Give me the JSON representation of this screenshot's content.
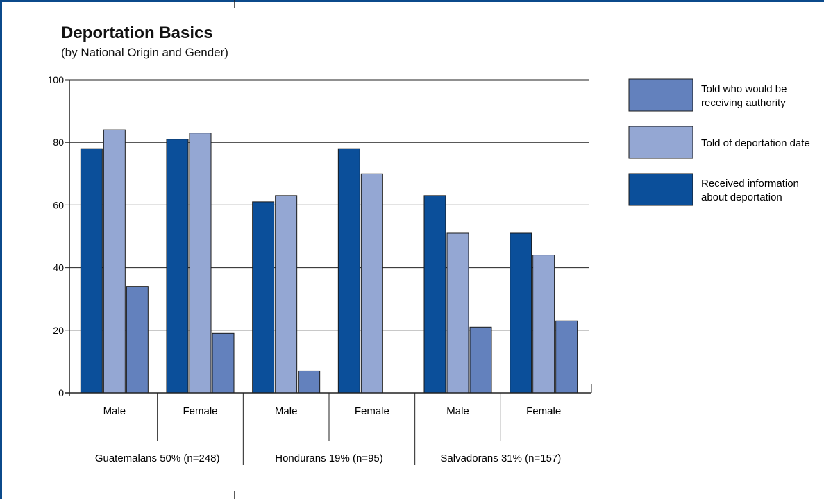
{
  "chart_data": {
    "type": "bar",
    "title": "Deportation Basics",
    "subtitle": "(by National Origin and Gender)",
    "ylim": [
      0,
      100
    ],
    "yticks": [
      0,
      20,
      40,
      60,
      80,
      100
    ],
    "grid": true,
    "legend_position": "right",
    "groups": [
      {
        "label": "Guatemalans 50% (n=248)",
        "categories": [
          "Male",
          "Female"
        ]
      },
      {
        "label": "Hondurans 19% (n=95)",
        "categories": [
          "Male",
          "Female"
        ]
      },
      {
        "label": "Salvadorans 31% (n=157)",
        "categories": [
          "Male",
          "Female"
        ]
      }
    ],
    "categories": [
      "Male",
      "Female",
      "Male",
      "Female",
      "Male",
      "Female"
    ],
    "series": [
      {
        "name": "Received information about deportation",
        "legend_lines": [
          "Received information",
          "about deportation"
        ],
        "color": "#0b4f9a",
        "values": [
          78,
          81,
          61,
          78,
          63,
          51
        ]
      },
      {
        "name": "Told of deportation date",
        "legend_lines": [
          "Told of deportation date"
        ],
        "color": "#94a7d3",
        "values": [
          84,
          83,
          63,
          70,
          51,
          44
        ]
      },
      {
        "name": "Told who would be receiving authority",
        "legend_lines": [
          "Told who would be",
          "receiving authority"
        ],
        "color": "#6381bd",
        "values": [
          34,
          19,
          7,
          null,
          21,
          23
        ]
      }
    ],
    "legend_order": [
      2,
      1,
      0
    ]
  }
}
